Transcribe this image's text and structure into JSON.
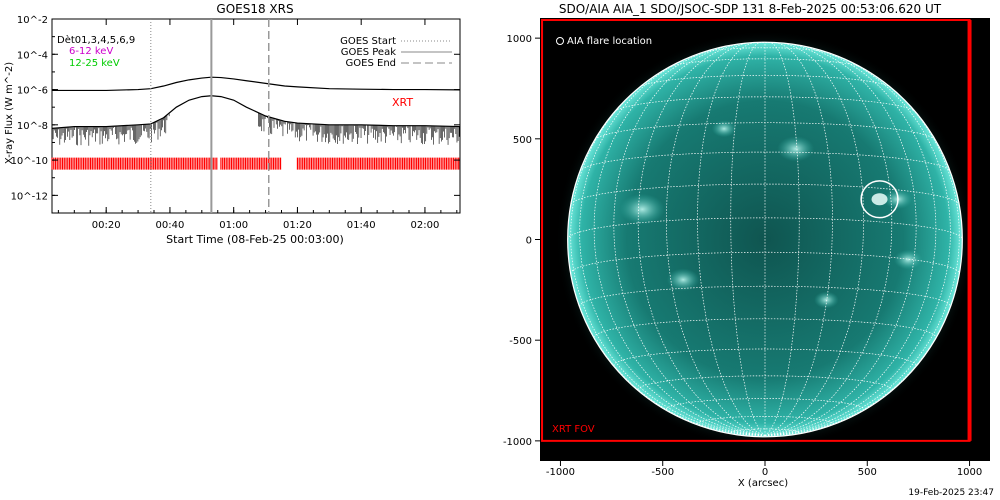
{
  "chart_data": [
    {
      "type": "line",
      "title": "GOES18 XRS",
      "xlabel": "Start Time (08-Feb-25 00:03:00)",
      "ylabel": "X-ray Flux (W m^-2)",
      "x_unit": "minutes after 00:00 UT on 08-Feb-2025",
      "xlim": [
        3,
        131
      ],
      "x_ticks": [
        20,
        40,
        60,
        80,
        100,
        120
      ],
      "x_tick_labels": [
        "00:20",
        "00:40",
        "01:00",
        "01:20",
        "01:40",
        "02:00"
      ],
      "ylog": true,
      "ylim_log10": [
        -13,
        -2
      ],
      "y_ticks_log10": [
        -12,
        -10,
        -8,
        -6,
        -4,
        -2
      ],
      "y_tick_labels": [
        "10^-12",
        "10^-10",
        "10^-8",
        "10^-6",
        "10^-4",
        "10^-2"
      ],
      "annotations": {
        "satellite_text": "Dèt01,3,4,5,6,9",
        "band1": "6-12 keV",
        "band2": "12-25 keV",
        "xrt_label": "XRT"
      },
      "legend": {
        "placement": "top-right",
        "entries": [
          "GOES Start",
          "GOES Peak",
          "GOES End"
        ]
      },
      "markers": {
        "goes_start": 34,
        "goes_peak": 53,
        "goes_end": 71
      },
      "series": [
        {
          "name": "6-12 keV",
          "color": "#000000",
          "x": [
            3,
            10,
            20,
            30,
            34,
            38,
            42,
            46,
            50,
            53,
            56,
            60,
            64,
            70,
            76,
            80,
            90,
            100,
            110,
            120,
            131
          ],
          "log10_flux": [
            -6.05,
            -6.05,
            -6.05,
            -6.0,
            -5.95,
            -5.8,
            -5.6,
            -5.45,
            -5.35,
            -5.3,
            -5.32,
            -5.4,
            -5.5,
            -5.65,
            -5.8,
            -5.85,
            -5.95,
            -5.98,
            -6.0,
            -6.0,
            -6.02
          ]
        },
        {
          "name": "12-25 keV",
          "color": "#000000",
          "x": [
            3,
            10,
            20,
            30,
            34,
            38,
            42,
            46,
            50,
            53,
            56,
            60,
            64,
            70,
            76,
            80,
            90,
            100,
            110,
            120,
            131
          ],
          "log10_flux": [
            -8.2,
            -8.1,
            -8.1,
            -8.0,
            -7.95,
            -7.6,
            -7.0,
            -6.6,
            -6.4,
            -6.35,
            -6.4,
            -6.6,
            -7.0,
            -7.5,
            -7.8,
            -7.9,
            -8.0,
            -8.0,
            -8.05,
            -8.05,
            -8.1
          ]
        }
      ],
      "xrt_coverage": {
        "color": "#ff0000",
        "log10_level": -10.2,
        "intervals": [
          [
            3,
            55
          ],
          [
            56,
            75
          ],
          [
            80,
            131
          ]
        ]
      }
    },
    {
      "type": "image",
      "title": "SDO/AIA AIA_1 SDO/JSOC-SDP 131  8-Feb-2025 00:53:06.620 UT",
      "xlabel": "X (arcsec)",
      "ylabel": "",
      "xlim": [
        -1100,
        1100
      ],
      "ylim": [
        -1100,
        1100
      ],
      "x_ticks": [
        -1000,
        -500,
        0,
        500,
        1000
      ],
      "x_tick_labels": [
        "-1000",
        "-500",
        "0",
        "500",
        "1000"
      ],
      "y_ticks": [
        -1000,
        -500,
        0,
        500,
        1000
      ],
      "y_tick_labels": [
        "-1000",
        "-500",
        "0",
        "500",
        "1000"
      ],
      "solar_radius_arcsec": 980,
      "flare_location": {
        "x": 560,
        "y": 200,
        "radius_arcsec": 90
      },
      "flare_label": "AIA flare location",
      "xrt_fov": {
        "x_range": [
          -1090,
          1000
        ],
        "y_range": [
          -1000,
          1090
        ],
        "color": "#ff0000"
      },
      "xrt_fov_label": "XRT FOV",
      "grid_color": "#ffffff"
    }
  ],
  "footer": {
    "timestamp": "19-Feb-2025 23:47"
  }
}
